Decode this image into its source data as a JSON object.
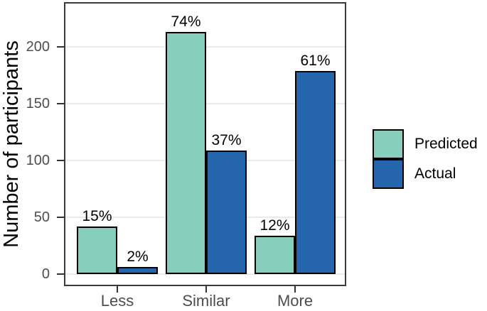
{
  "chart_data": {
    "type": "bar",
    "title": "",
    "xlabel": "",
    "ylabel": "Number of participants",
    "categories": [
      "Less",
      "Similar",
      "More"
    ],
    "series": [
      {
        "name": "Predicted",
        "color": "#87CFBC",
        "values": [
          42,
          213,
          34
        ],
        "bar_labels": [
          "15%",
          "74%",
          "12%"
        ]
      },
      {
        "name": "Actual",
        "color": "#2565AB",
        "values": [
          6,
          109,
          179
        ],
        "bar_labels": [
          "2%",
          "37%",
          "61%"
        ]
      }
    ],
    "yticks": [
      0,
      50,
      100,
      150,
      200
    ],
    "ylim": [
      0,
      238
    ],
    "grid": "horizontal-major",
    "legend_position": "right",
    "bar_outline_color": "#000000"
  },
  "colors": {
    "background": "#ffffff",
    "panel_border": "#3a3a3a",
    "gridline": "#ebebeb",
    "tick": "#333333",
    "tick_label": "#4d4d4d",
    "text": "#000000"
  }
}
